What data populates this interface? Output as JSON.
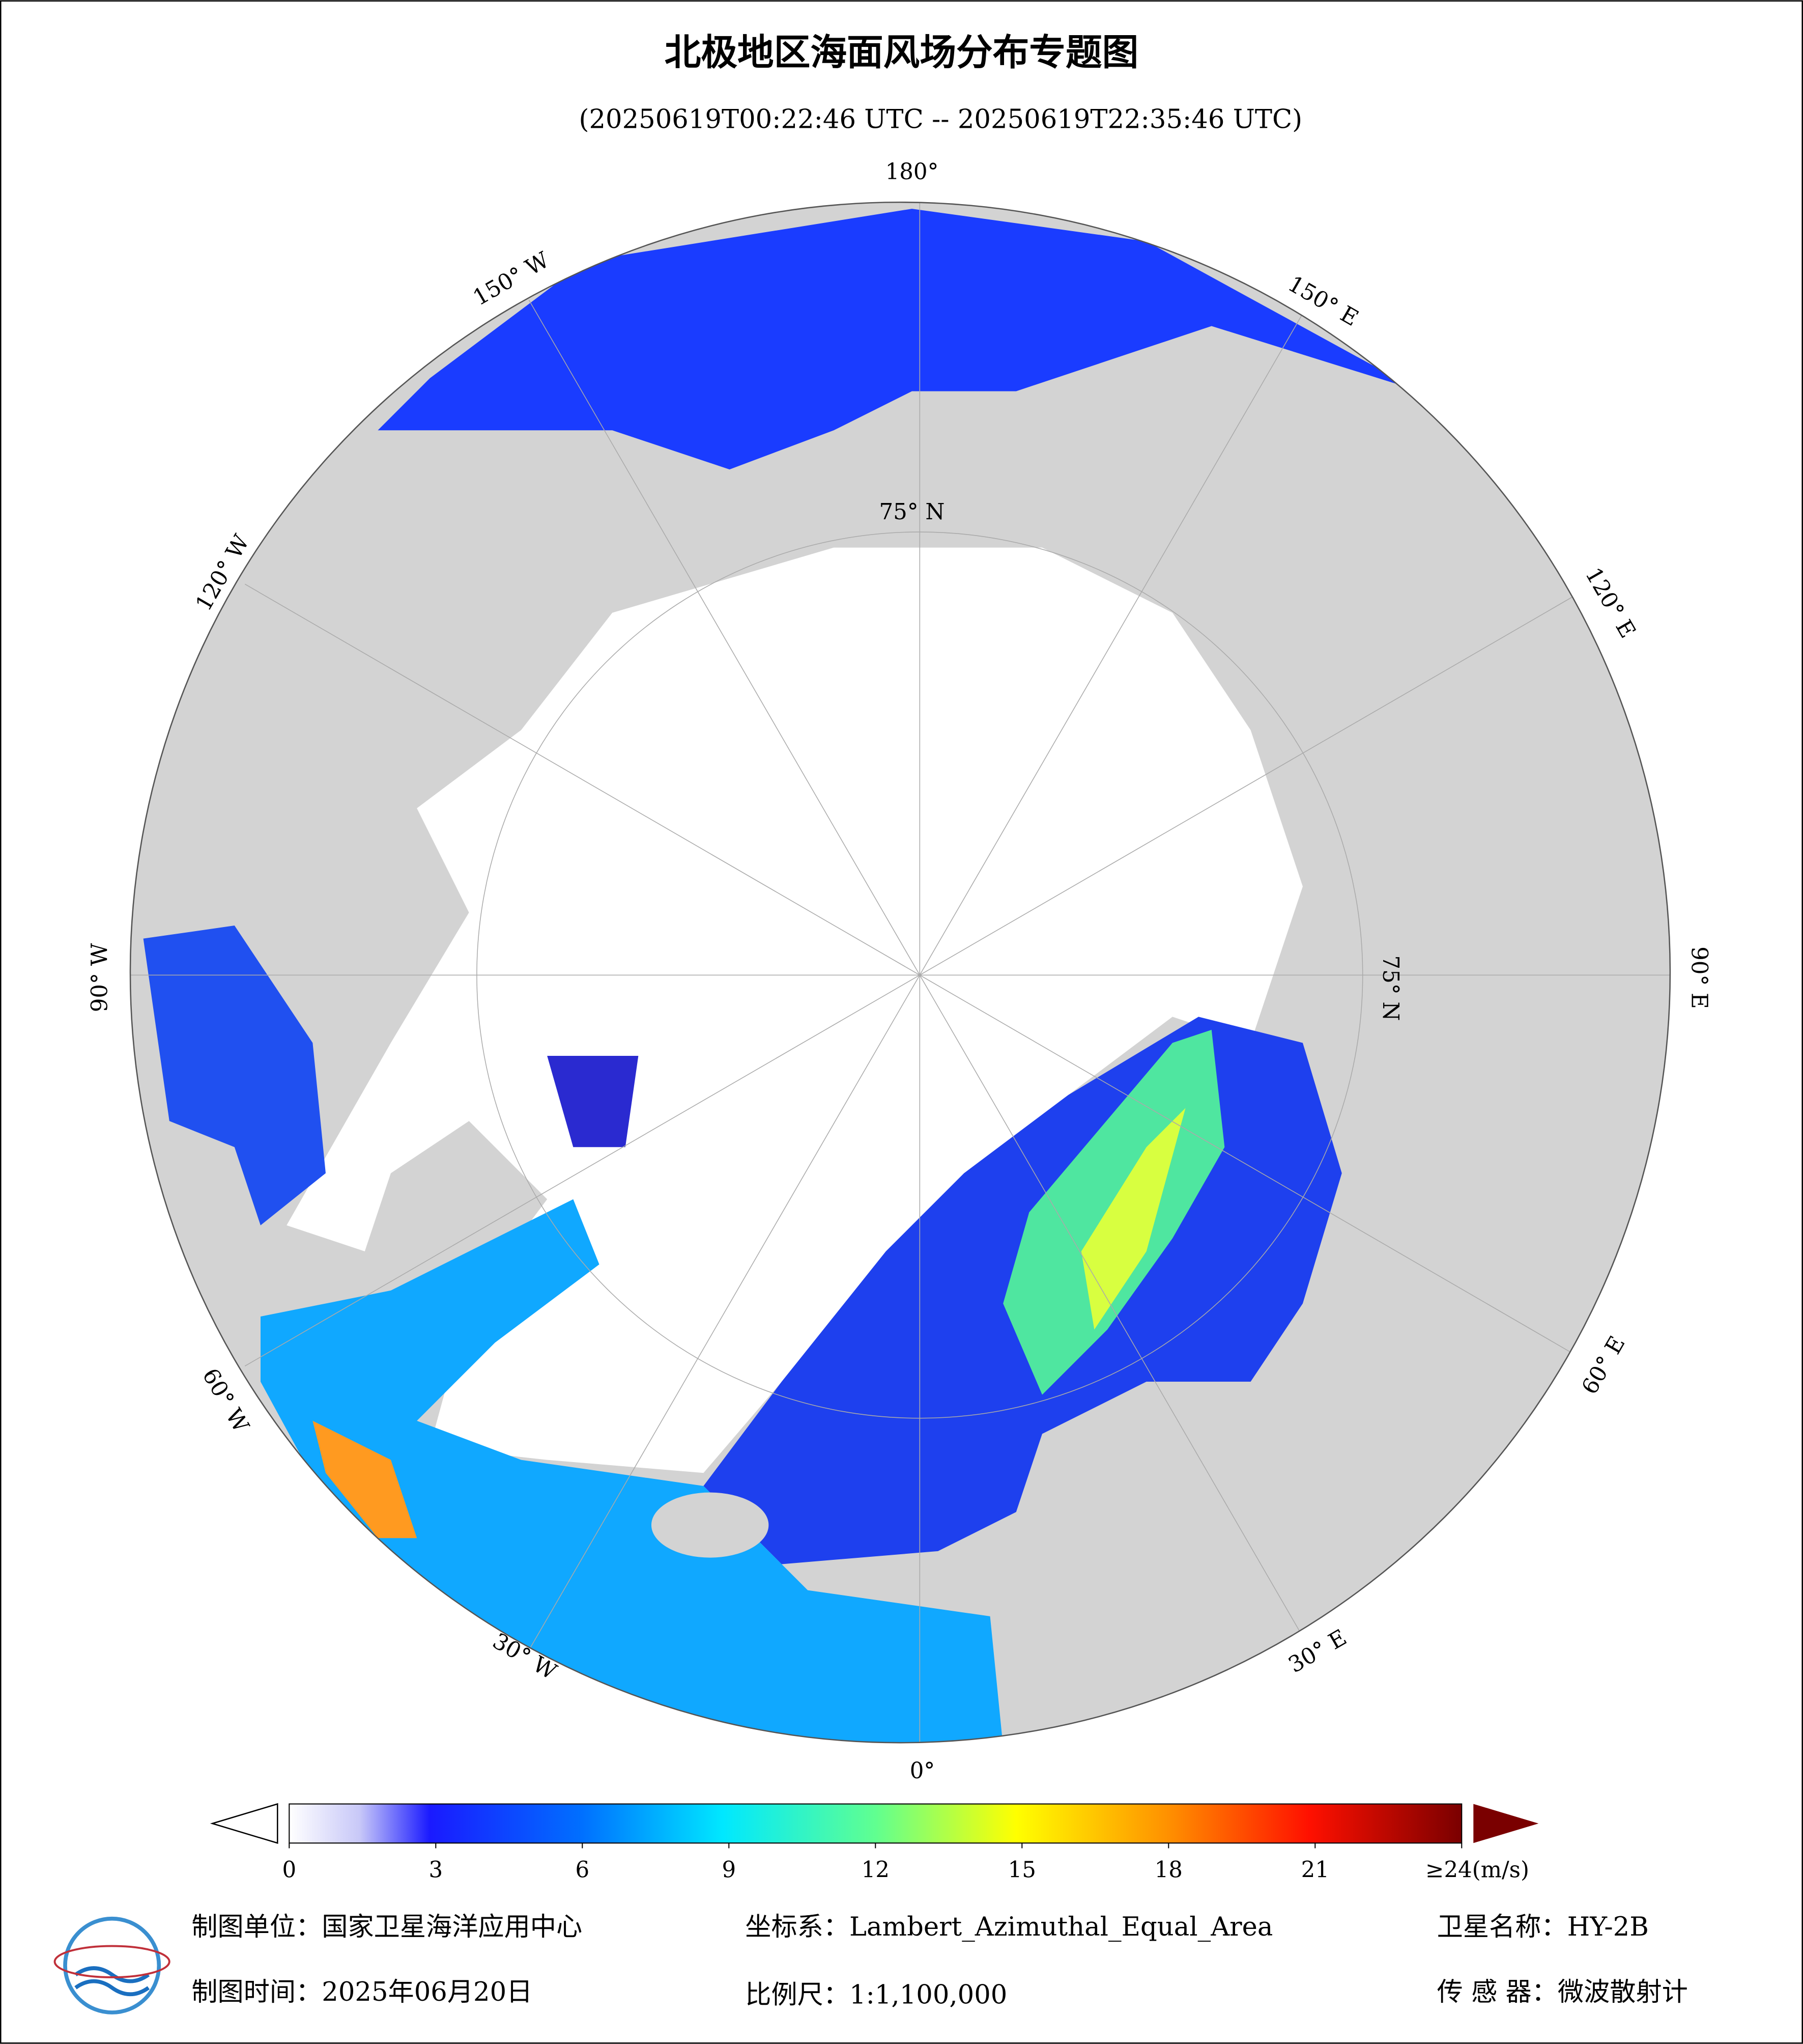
{
  "header": {
    "title": "北极地区海面风场分布专题图",
    "subtitle": "(20250619T00:22:46 UTC -- 20250619T22:35:46 UTC)"
  },
  "map": {
    "graticule_labels": [
      "180°",
      "150° E",
      "120° E",
      "90° E",
      "60° E",
      "30° E",
      "0°",
      "30° W",
      "60° W",
      "90° W",
      "120° W",
      "150° W",
      "75° N",
      "75° N"
    ]
  },
  "colorbar": {
    "range": [
      0,
      24
    ],
    "ticks": [
      0,
      3,
      6,
      9,
      12,
      15,
      18,
      21,
      {
        "value": 24,
        "label": "≥24(m/s)"
      }
    ]
  },
  "footer": {
    "unit": "制图单位：国家卫星海洋应用中心",
    "projection": "坐标系：Lambert_Azimuthal_Equal_Area",
    "satellite": "卫星名称：HY-2B",
    "date": "制图时间：2025年06月20日",
    "scale": "比例尺：1:1,100,000",
    "sensor": "传 感 器：微波散射计"
  }
}
